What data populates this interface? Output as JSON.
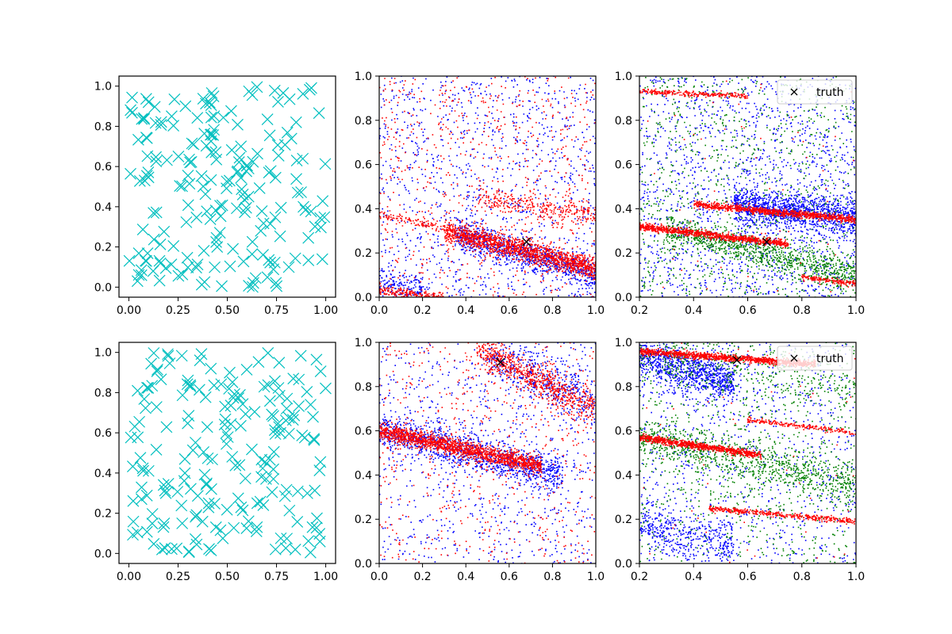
{
  "figure": {
    "background": "#ffffff"
  },
  "colors": {
    "cyan": "#00bfbf",
    "blue": "#0000ff",
    "red": "#ff0000",
    "green": "#008000",
    "black": "#000000"
  },
  "chart_data": [
    {
      "type": "scatter",
      "panel": "row1-col1",
      "marker": "x",
      "color": "#00bfbf",
      "title": "",
      "xlabel": "",
      "ylabel": "",
      "xlim": [
        -0.05,
        1.05
      ],
      "ylim": [
        -0.05,
        1.05
      ],
      "xticks": [
        "0.00",
        "0.25",
        "0.50",
        "0.75",
        "1.00"
      ],
      "yticks": [
        "0.0",
        "0.2",
        "0.4",
        "0.6",
        "0.8",
        "1.0"
      ],
      "point_count": 200,
      "distribution": "uniform random over [0,1]x[0,1]",
      "seed": 11
    },
    {
      "type": "scatter",
      "panel": "row1-col2",
      "marker": "dot",
      "title": "",
      "xlabel": "",
      "ylabel": "",
      "xlim": [
        0,
        1
      ],
      "ylim": [
        0,
        1
      ],
      "xticks": [
        "0.0",
        "0.2",
        "0.4",
        "0.6",
        "0.8",
        "1.0"
      ],
      "yticks": [
        "0.0",
        "0.2",
        "0.4",
        "0.6",
        "0.8",
        "1.0"
      ],
      "series": [
        {
          "color": "#0000ff",
          "bands": [
            {
              "x0": 0.35,
              "x1": 1.0,
              "y0": 0.29,
              "y1": 0.1,
              "spread": 0.035,
              "count": 900
            },
            {
              "x0": 0.0,
              "x1": 0.2,
              "y0": 0.06,
              "y1": 0.03,
              "spread": 0.03,
              "count": 150
            }
          ],
          "scatter_count": 1100
        },
        {
          "color": "#ff0000",
          "bands": [
            {
              "x0": 0.3,
              "x1": 1.0,
              "y0": 0.3,
              "y1": 0.13,
              "spread": 0.025,
              "count": 1400
            },
            {
              "x0": 0.45,
              "x1": 1.0,
              "y0": 0.45,
              "y1": 0.37,
              "spread": 0.025,
              "count": 300
            },
            {
              "x0": 0.0,
              "x1": 0.3,
              "y0": 0.03,
              "y1": 0.0,
              "spread": 0.01,
              "count": 200
            },
            {
              "x0": 0.0,
              "x1": 0.35,
              "y0": 0.38,
              "y1": 0.3,
              "spread": 0.01,
              "count": 120
            }
          ],
          "scatter_count": 700
        }
      ],
      "truth": {
        "x": 0.68,
        "y": 0.25
      }
    },
    {
      "type": "scatter",
      "panel": "row1-col3",
      "marker": "dot",
      "title": "",
      "xlabel": "",
      "ylabel": "",
      "xlim": [
        0.2,
        1
      ],
      "ylim": [
        0,
        1
      ],
      "xticks": [
        "0.2",
        "0.4",
        "0.6",
        "0.8",
        "1.0"
      ],
      "yticks": [
        "0.0",
        "0.2",
        "0.4",
        "0.6",
        "0.8",
        "1.0"
      ],
      "legend": {
        "label": "truth",
        "location": "upper right"
      },
      "series": [
        {
          "color": "#0000ff",
          "bands": [
            {
              "x0": 0.55,
              "x1": 1.0,
              "y0": 0.42,
              "y1": 0.36,
              "spread": 0.04,
              "count": 1200
            }
          ],
          "scatter_count": 1500
        },
        {
          "color": "#008000",
          "bands": [
            {
              "x0": 0.3,
              "x1": 1.0,
              "y0": 0.3,
              "y1": 0.1,
              "spread": 0.035,
              "count": 900
            }
          ],
          "scatter_count": 900
        },
        {
          "color": "#ff0000",
          "bands": [
            {
              "x0": 0.2,
              "x1": 0.75,
              "y0": 0.32,
              "y1": 0.24,
              "spread": 0.008,
              "count": 900
            },
            {
              "x0": 0.4,
              "x1": 1.0,
              "y0": 0.42,
              "y1": 0.35,
              "spread": 0.008,
              "count": 900
            },
            {
              "x0": 0.2,
              "x1": 0.6,
              "y0": 0.93,
              "y1": 0.91,
              "spread": 0.006,
              "count": 250
            },
            {
              "x0": 0.8,
              "x1": 1.0,
              "y0": 0.09,
              "y1": 0.06,
              "spread": 0.006,
              "count": 150
            }
          ],
          "scatter_count": 60
        }
      ],
      "truth": {
        "x": 0.67,
        "y": 0.25
      }
    },
    {
      "type": "scatter",
      "panel": "row2-col1",
      "marker": "x",
      "color": "#00bfbf",
      "title": "",
      "xlabel": "",
      "ylabel": "",
      "xlim": [
        -0.05,
        1.05
      ],
      "ylim": [
        -0.05,
        1.05
      ],
      "xticks": [
        "0.00",
        "0.25",
        "0.50",
        "0.75",
        "1.00"
      ],
      "yticks": [
        "0.0",
        "0.2",
        "0.4",
        "0.6",
        "0.8",
        "1.0"
      ],
      "point_count": 200,
      "distribution": "uniform random over [0,1]x[0,1]",
      "seed": 23
    },
    {
      "type": "scatter",
      "panel": "row2-col2",
      "marker": "dot",
      "title": "",
      "xlabel": "",
      "ylabel": "",
      "xlim": [
        0,
        1
      ],
      "ylim": [
        0,
        1
      ],
      "xticks": [
        "0.0",
        "0.2",
        "0.4",
        "0.6",
        "0.8",
        "1.0"
      ],
      "yticks": [
        "0.0",
        "0.2",
        "0.4",
        "0.6",
        "0.8",
        "1.0"
      ],
      "series": [
        {
          "color": "#0000ff",
          "bands": [
            {
              "x0": 0.0,
              "x1": 0.85,
              "y0": 0.6,
              "y1": 0.4,
              "spread": 0.04,
              "count": 1100
            },
            {
              "x0": 0.5,
              "x1": 1.0,
              "y0": 0.95,
              "y1": 0.72,
              "spread": 0.05,
              "count": 400
            }
          ],
          "scatter_count": 900
        },
        {
          "color": "#ff0000",
          "bands": [
            {
              "x0": 0.0,
              "x1": 0.75,
              "y0": 0.6,
              "y1": 0.44,
              "spread": 0.02,
              "count": 1500
            },
            {
              "x0": 0.45,
              "x1": 1.0,
              "y0": 0.97,
              "y1": 0.7,
              "spread": 0.04,
              "count": 700
            }
          ],
          "scatter_count": 600
        }
      ],
      "truth": {
        "x": 0.56,
        "y": 0.91
      }
    },
    {
      "type": "scatter",
      "panel": "row2-col3",
      "marker": "dot",
      "title": "",
      "xlabel": "",
      "ylabel": "",
      "xlim": [
        0.2,
        1
      ],
      "ylim": [
        0,
        1
      ],
      "xticks": [
        "0.2",
        "0.4",
        "0.6",
        "0.8",
        "1.0"
      ],
      "yticks": [
        "0.0",
        "0.2",
        "0.4",
        "0.6",
        "0.8",
        "1.0"
      ],
      "legend": {
        "label": "truth",
        "location": "upper right"
      },
      "series": [
        {
          "color": "#0000ff",
          "bands": [
            {
              "x0": 0.2,
              "x1": 0.55,
              "y0": 0.93,
              "y1": 0.82,
              "spread": 0.05,
              "count": 900
            },
            {
              "x0": 0.2,
              "x1": 0.55,
              "y0": 0.18,
              "y1": 0.08,
              "spread": 0.05,
              "count": 400
            }
          ],
          "scatter_count": 900
        },
        {
          "color": "#008000",
          "bands": [
            {
              "x0": 0.2,
              "x1": 1.0,
              "y0": 0.57,
              "y1": 0.36,
              "spread": 0.05,
              "count": 900
            },
            {
              "x0": 0.2,
              "x1": 1.0,
              "y0": 0.93,
              "y1": 0.8,
              "spread": 0.06,
              "count": 400
            }
          ],
          "scatter_count": 700
        },
        {
          "color": "#ff0000",
          "bands": [
            {
              "x0": 0.2,
              "x1": 0.85,
              "y0": 0.96,
              "y1": 0.9,
              "spread": 0.008,
              "count": 1100
            },
            {
              "x0": 0.2,
              "x1": 0.65,
              "y0": 0.57,
              "y1": 0.49,
              "spread": 0.008,
              "count": 800
            },
            {
              "x0": 0.45,
              "x1": 1.0,
              "y0": 0.25,
              "y1": 0.19,
              "spread": 0.006,
              "count": 400
            },
            {
              "x0": 0.6,
              "x1": 1.0,
              "y0": 0.65,
              "y1": 0.59,
              "spread": 0.006,
              "count": 200
            }
          ],
          "scatter_count": 60
        }
      ],
      "truth": {
        "x": 0.56,
        "y": 0.92
      }
    }
  ]
}
